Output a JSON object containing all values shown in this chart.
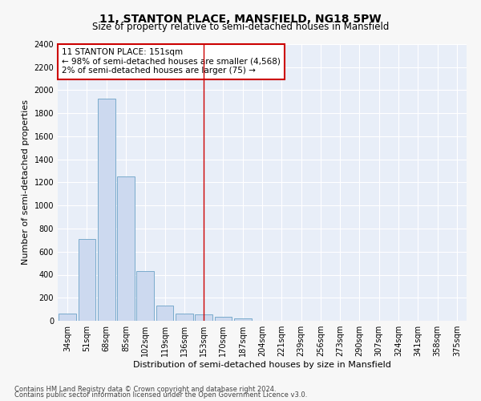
{
  "title": "11, STANTON PLACE, MANSFIELD, NG18 5PW",
  "subtitle": "Size of property relative to semi-detached houses in Mansfield",
  "xlabel": "Distribution of semi-detached houses by size in Mansfield",
  "ylabel": "Number of semi-detached properties",
  "categories": [
    "34sqm",
    "51sqm",
    "68sqm",
    "85sqm",
    "102sqm",
    "119sqm",
    "136sqm",
    "153sqm",
    "170sqm",
    "187sqm",
    "204sqm",
    "221sqm",
    "239sqm",
    "256sqm",
    "273sqm",
    "290sqm",
    "307sqm",
    "324sqm",
    "341sqm",
    "358sqm",
    "375sqm"
  ],
  "values": [
    65,
    710,
    1930,
    1255,
    430,
    135,
    60,
    55,
    35,
    20,
    0,
    0,
    0,
    0,
    0,
    0,
    0,
    0,
    0,
    0,
    0
  ],
  "bar_color": "#ccd9ef",
  "bar_edge_color": "#7aabcc",
  "vline_x_index": 7,
  "vline_color": "#cc0000",
  "annotation_title": "11 STANTON PLACE: 151sqm",
  "annotation_line1": "← 98% of semi-detached houses are smaller (4,568)",
  "annotation_line2": "2% of semi-detached houses are larger (75) →",
  "annotation_box_color": "#ffffff",
  "annotation_box_edge_color": "#cc0000",
  "ylim": [
    0,
    2400
  ],
  "yticks": [
    0,
    200,
    400,
    600,
    800,
    1000,
    1200,
    1400,
    1600,
    1800,
    2000,
    2200,
    2400
  ],
  "footnote1": "Contains HM Land Registry data © Crown copyright and database right 2024.",
  "footnote2": "Contains public sector information licensed under the Open Government Licence v3.0.",
  "fig_bg_color": "#f7f7f7",
  "ax_bg_color": "#e8eef8",
  "grid_color": "#ffffff",
  "title_fontsize": 10,
  "subtitle_fontsize": 8.5,
  "axis_label_fontsize": 8,
  "tick_fontsize": 7,
  "annotation_fontsize": 7.5,
  "footnote_fontsize": 6
}
